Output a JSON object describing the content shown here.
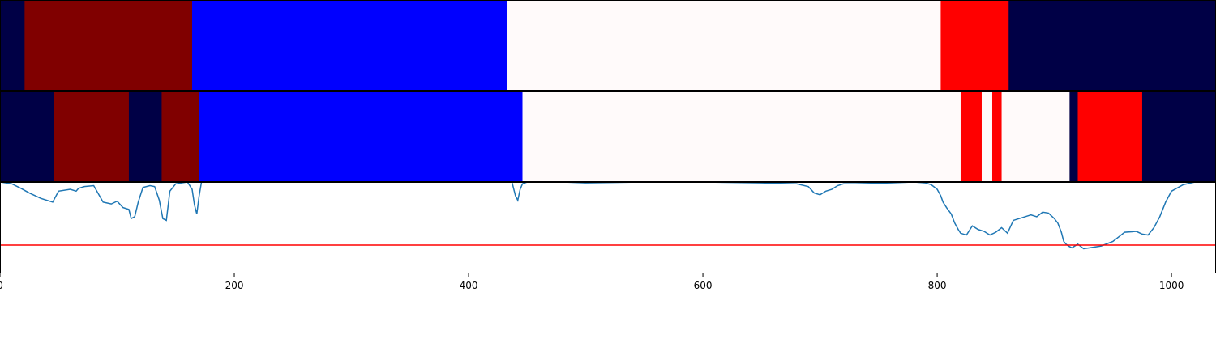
{
  "chart_data": [
    {
      "type": "heatmap",
      "title": "",
      "xlim": [
        0,
        1038
      ],
      "colors": {
        "c0": "#000046",
        "c1": "#800000",
        "c2": "#0000ff",
        "c3": "#fffafa",
        "c4": "#ff0000"
      },
      "segments": [
        {
          "start": 0,
          "end": 21,
          "color": "c0"
        },
        {
          "start": 21,
          "end": 164,
          "color": "c1"
        },
        {
          "start": 164,
          "end": 433,
          "color": "c2"
        },
        {
          "start": 433,
          "end": 803,
          "color": "c3"
        },
        {
          "start": 803,
          "end": 861,
          "color": "c4"
        },
        {
          "start": 861,
          "end": 1038,
          "color": "c0"
        }
      ]
    },
    {
      "type": "heatmap",
      "title": "",
      "xlim": [
        0,
        1038
      ],
      "colors": {
        "c0": "#000046",
        "c1": "#800000",
        "c2": "#0000ff",
        "c3": "#fffafa",
        "c4": "#ff0000"
      },
      "segments": [
        {
          "start": 0,
          "end": 46,
          "color": "c0"
        },
        {
          "start": 46,
          "end": 110,
          "color": "c1"
        },
        {
          "start": 110,
          "end": 138,
          "color": "c0"
        },
        {
          "start": 138,
          "end": 170,
          "color": "c1"
        },
        {
          "start": 170,
          "end": 446,
          "color": "c2"
        },
        {
          "start": 446,
          "end": 820,
          "color": "c3"
        },
        {
          "start": 820,
          "end": 838,
          "color": "c4"
        },
        {
          "start": 838,
          "end": 847,
          "color": "c3"
        },
        {
          "start": 847,
          "end": 855,
          "color": "c4"
        },
        {
          "start": 855,
          "end": 913,
          "color": "c3"
        },
        {
          "start": 913,
          "end": 920,
          "color": "c0"
        },
        {
          "start": 920,
          "end": 975,
          "color": "c4"
        },
        {
          "start": 975,
          "end": 1038,
          "color": "c0"
        }
      ]
    },
    {
      "type": "line",
      "title": "",
      "xlabel": "",
      "ylabel": "",
      "xlim": [
        0,
        1038
      ],
      "ylim": [
        0,
        1
      ],
      "xticks": [
        0,
        200,
        400,
        600,
        800,
        1000
      ],
      "series": [
        {
          "color": "#1f77b4",
          "x": [
            0,
            10,
            18,
            25,
            30,
            35,
            45,
            50,
            60,
            65,
            67,
            72,
            80,
            88,
            95,
            100,
            105,
            110,
            112,
            115,
            118,
            122,
            128,
            132,
            136,
            139,
            142,
            145,
            150,
            160,
            164,
            166,
            168,
            170,
            172,
            175,
            180,
            200,
            300,
            400,
            437,
            440,
            442,
            444,
            446,
            450,
            460,
            480,
            500,
            550,
            600,
            650,
            680,
            690,
            695,
            700,
            705,
            710,
            715,
            720,
            730,
            760,
            780,
            790,
            795,
            800,
            803,
            805,
            808,
            812,
            815,
            818,
            820,
            825,
            830,
            835,
            840,
            845,
            850,
            855,
            860,
            865,
            870,
            875,
            880,
            885,
            890,
            895,
            900,
            903,
            906,
            908,
            910,
            912,
            915,
            920,
            925,
            930,
            940,
            950,
            955,
            960,
            970,
            975,
            980,
            985,
            990,
            995,
            1000,
            1010,
            1020,
            1038
          ],
          "y": [
            1.0,
            0.98,
            0.93,
            0.88,
            0.85,
            0.82,
            0.78,
            0.9,
            0.92,
            0.9,
            0.93,
            0.95,
            0.96,
            0.78,
            0.76,
            0.79,
            0.72,
            0.7,
            0.6,
            0.62,
            0.78,
            0.94,
            0.96,
            0.95,
            0.8,
            0.6,
            0.58,
            0.9,
            0.98,
            1.0,
            0.92,
            0.75,
            0.65,
            0.85,
            1.0,
            1.0,
            1.0,
            1.0,
            1.0,
            1.0,
            1.0,
            0.85,
            0.8,
            0.92,
            0.98,
            1.0,
            1.0,
            1.0,
            0.99,
            1.0,
            1.0,
            0.99,
            0.98,
            0.95,
            0.88,
            0.86,
            0.9,
            0.92,
            0.96,
            0.98,
            0.98,
            0.99,
            1.0,
            0.99,
            0.97,
            0.92,
            0.85,
            0.78,
            0.72,
            0.65,
            0.55,
            0.48,
            0.44,
            0.42,
            0.52,
            0.48,
            0.46,
            0.42,
            0.45,
            0.5,
            0.44,
            0.58,
            0.6,
            0.62,
            0.64,
            0.62,
            0.67,
            0.66,
            0.6,
            0.55,
            0.45,
            0.35,
            0.32,
            0.3,
            0.28,
            0.32,
            0.27,
            0.28,
            0.3,
            0.35,
            0.4,
            0.45,
            0.46,
            0.43,
            0.42,
            0.5,
            0.62,
            0.78,
            0.9,
            0.97,
            1.0,
            1.0
          ],
          "threshold": {
            "y": 0.31,
            "color": "#ff0000"
          }
        }
      ]
    }
  ]
}
